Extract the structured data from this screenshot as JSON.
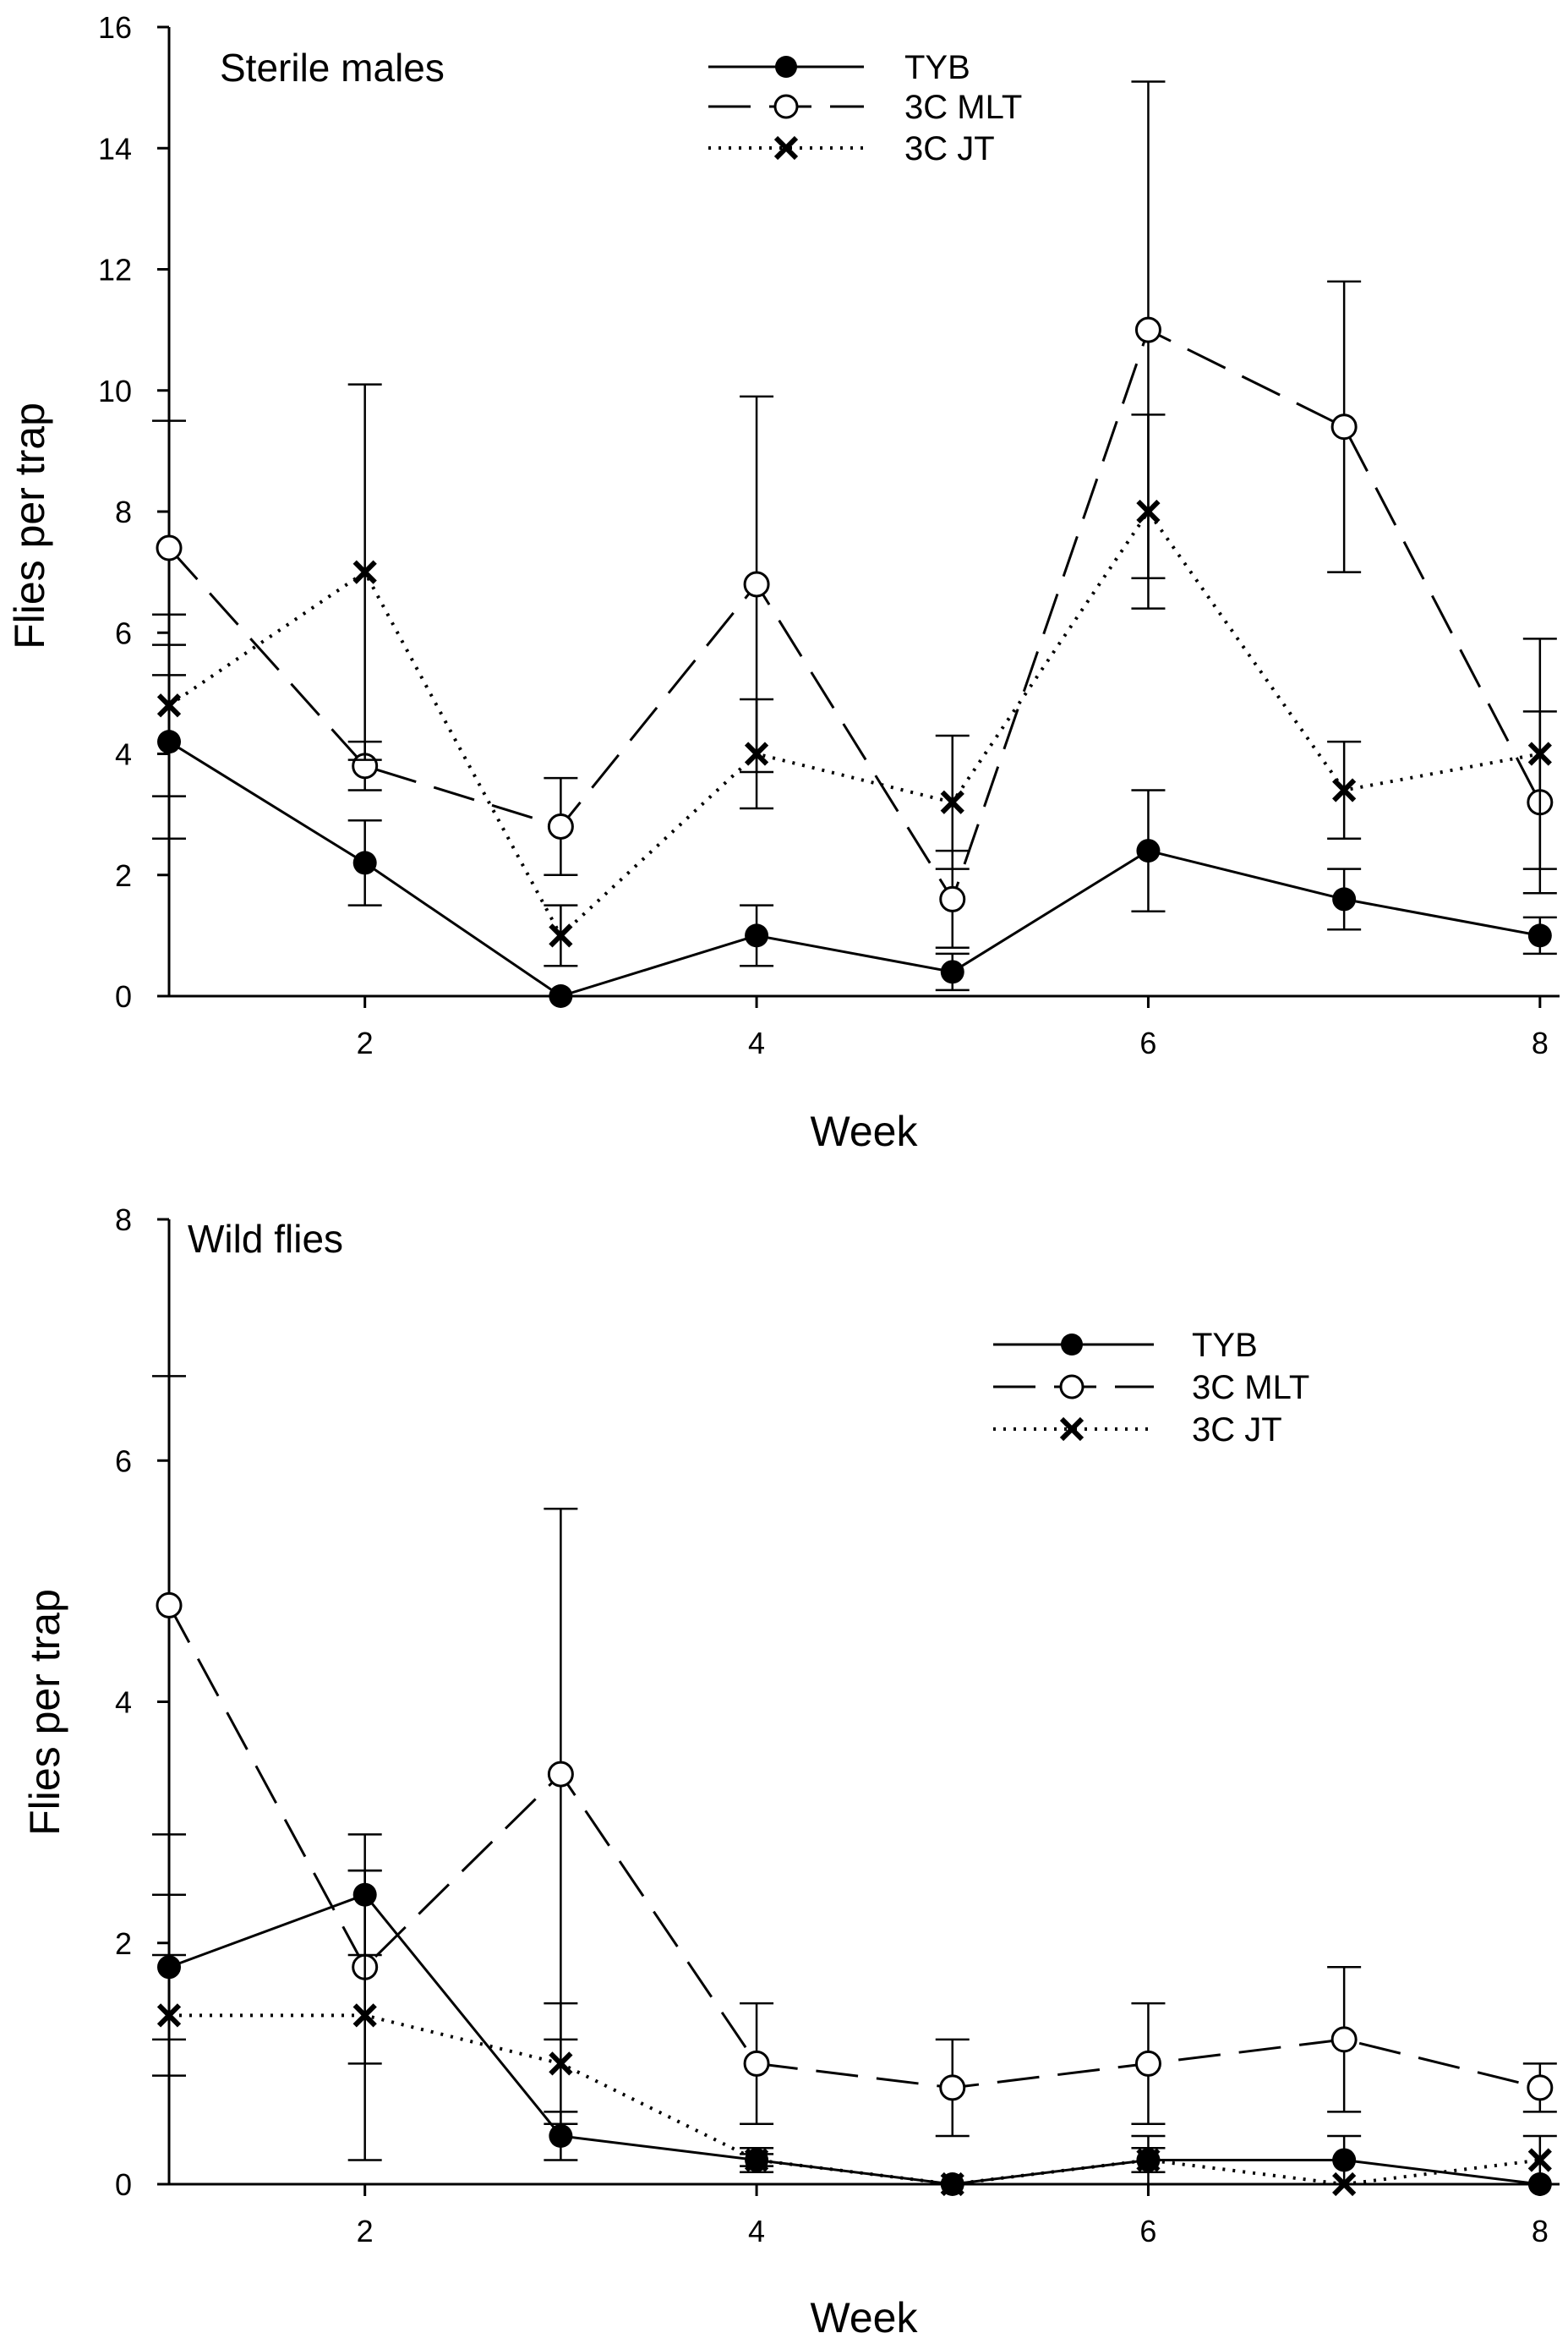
{
  "chart_data": [
    {
      "type": "line",
      "title": "Sterile males",
      "xlabel": "Week",
      "ylabel": "Flies per trap",
      "xlim": [
        1,
        8.1
      ],
      "ylim": [
        0,
        16
      ],
      "xticks": [
        2,
        4,
        6,
        8
      ],
      "yticks": [
        0,
        2,
        4,
        6,
        8,
        10,
        12,
        14,
        16
      ],
      "legend_position": "top-center",
      "x": [
        1,
        2,
        3,
        4,
        5,
        6,
        7,
        8
      ],
      "series": [
        {
          "name": "TYB",
          "marker": "filled-circle",
          "line": "solid",
          "values": [
            4.2,
            2.2,
            0.0,
            1.0,
            0.4,
            2.4,
            1.6,
            1.0
          ],
          "upper": [
            5.8,
            2.9,
            0.0,
            1.5,
            0.7,
            3.4,
            2.1,
            1.3
          ],
          "lower": [
            2.6,
            1.5,
            0.0,
            0.5,
            0.1,
            1.4,
            1.1,
            0.7
          ]
        },
        {
          "name": "3C MLT",
          "marker": "open-circle",
          "line": "dashed",
          "values": [
            7.4,
            3.8,
            2.8,
            6.8,
            1.6,
            11.0,
            9.4,
            3.2
          ],
          "upper": [
            9.5,
            4.2,
            3.6,
            9.9,
            2.4,
            15.1,
            11.8,
            4.7
          ],
          "lower": [
            5.3,
            3.4,
            2.0,
            3.7,
            0.8,
            6.9,
            7.0,
            1.7
          ]
        },
        {
          "name": "3C JT",
          "marker": "cross",
          "line": "dotted",
          "values": [
            4.8,
            7.0,
            1.0,
            4.0,
            3.2,
            8.0,
            3.4,
            4.0
          ],
          "upper": [
            6.3,
            10.1,
            1.5,
            4.9,
            4.3,
            9.6,
            4.2,
            5.9
          ],
          "lower": [
            3.3,
            3.9,
            0.5,
            3.1,
            2.1,
            6.4,
            2.6,
            2.1
          ]
        }
      ]
    },
    {
      "type": "line",
      "title": "Wild flies",
      "xlabel": "Week",
      "ylabel": "Flies per trap",
      "xlim": [
        1,
        8.1
      ],
      "ylim": [
        0,
        8
      ],
      "xticks": [
        2,
        4,
        6,
        8
      ],
      "yticks": [
        0,
        2,
        4,
        6,
        8
      ],
      "legend_position": "top-right",
      "x": [
        1,
        2,
        3,
        4,
        5,
        6,
        7,
        8
      ],
      "series": [
        {
          "name": "TYB",
          "marker": "filled-circle",
          "line": "solid",
          "values": [
            1.8,
            2.4,
            0.4,
            0.2,
            0.0,
            0.2,
            0.2,
            0.0
          ],
          "upper": [
            2.4,
            2.9,
            0.6,
            0.25,
            0.0,
            0.4,
            0.4,
            0.0
          ],
          "lower": [
            1.2,
            1.9,
            0.2,
            0.15,
            0.0,
            0.0,
            0.0,
            0.0
          ]
        },
        {
          "name": "3C MLT",
          "marker": "open-circle",
          "line": "dashed",
          "values": [
            4.8,
            1.8,
            3.4,
            1.0,
            0.8,
            1.0,
            1.2,
            0.8
          ],
          "upper": [
            6.7,
            2.6,
            5.6,
            1.5,
            1.2,
            1.5,
            1.8,
            1.0
          ],
          "lower": [
            2.9,
            1.0,
            1.2,
            0.5,
            0.4,
            0.5,
            0.6,
            0.6
          ]
        },
        {
          "name": "3C JT",
          "marker": "cross",
          "line": "dotted",
          "values": [
            1.4,
            1.4,
            1.0,
            0.2,
            0.0,
            0.2,
            0.0,
            0.2
          ],
          "upper": [
            1.9,
            2.6,
            1.5,
            0.3,
            0.0,
            0.3,
            0.0,
            0.4
          ],
          "lower": [
            0.9,
            0.2,
            0.5,
            0.1,
            0.0,
            0.1,
            0.0,
            0.0
          ]
        }
      ]
    }
  ]
}
